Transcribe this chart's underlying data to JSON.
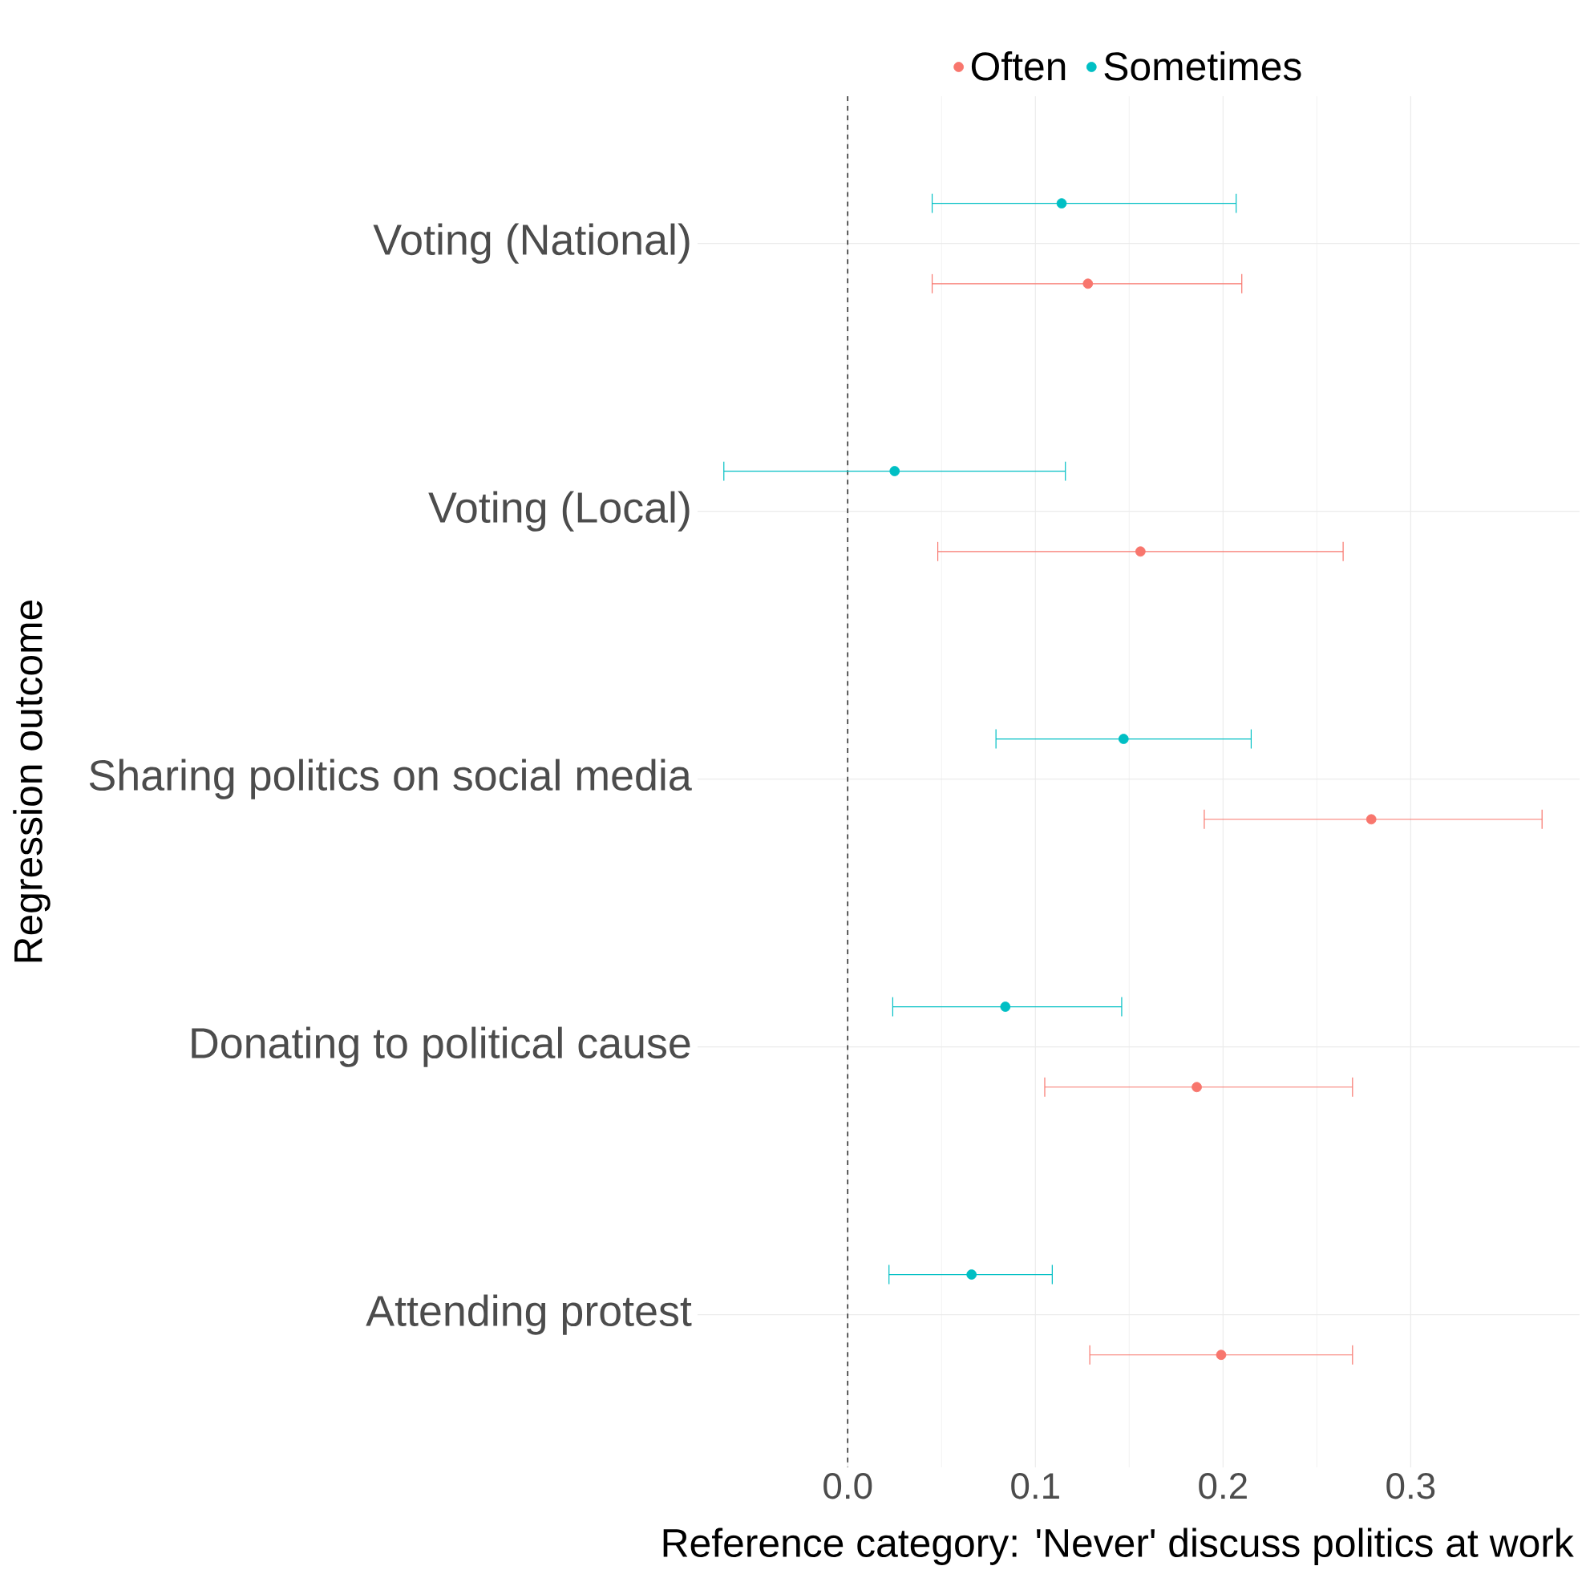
{
  "chart_data": {
    "type": "scatter",
    "orientation": "horizontal",
    "xlabel": "Reference category: 'Never' discuss politics at work",
    "ylabel": "Regression outcome",
    "categories": [
      "Voting (National)",
      "Voting (Local)",
      "Sharing politics on social media",
      "Donating to political cause",
      "Attending protest"
    ],
    "series": [
      {
        "name": "Often",
        "color": "#f8766d",
        "values": [
          0.128,
          0.156,
          0.279,
          0.186,
          0.199
        ],
        "errors": [
          [
            0.045,
            0.21
          ],
          [
            0.048,
            0.264
          ],
          [
            0.19,
            0.37
          ],
          [
            0.105,
            0.269
          ],
          [
            0.129,
            0.269
          ]
        ]
      },
      {
        "name": "Sometimes",
        "color": "#00bfc4",
        "values": [
          0.114,
          0.025,
          0.147,
          0.084,
          0.066
        ],
        "errors": [
          [
            0.045,
            0.207
          ],
          [
            -0.066,
            0.116
          ],
          [
            0.079,
            0.215
          ],
          [
            0.024,
            0.146
          ],
          [
            0.022,
            0.109
          ]
        ]
      }
    ],
    "xlim": [
      -0.08,
      0.39
    ],
    "xticks": [
      {
        "value": 0,
        "label": "0.0"
      },
      0.1,
      0.2,
      0.3
    ],
    "ref_lines": [
      {
        "axis": "x",
        "value": 0,
        "line_style": "dashed",
        "color": "#333333"
      }
    ],
    "grid": true,
    "legend": "top",
    "marker": "circle"
  }
}
